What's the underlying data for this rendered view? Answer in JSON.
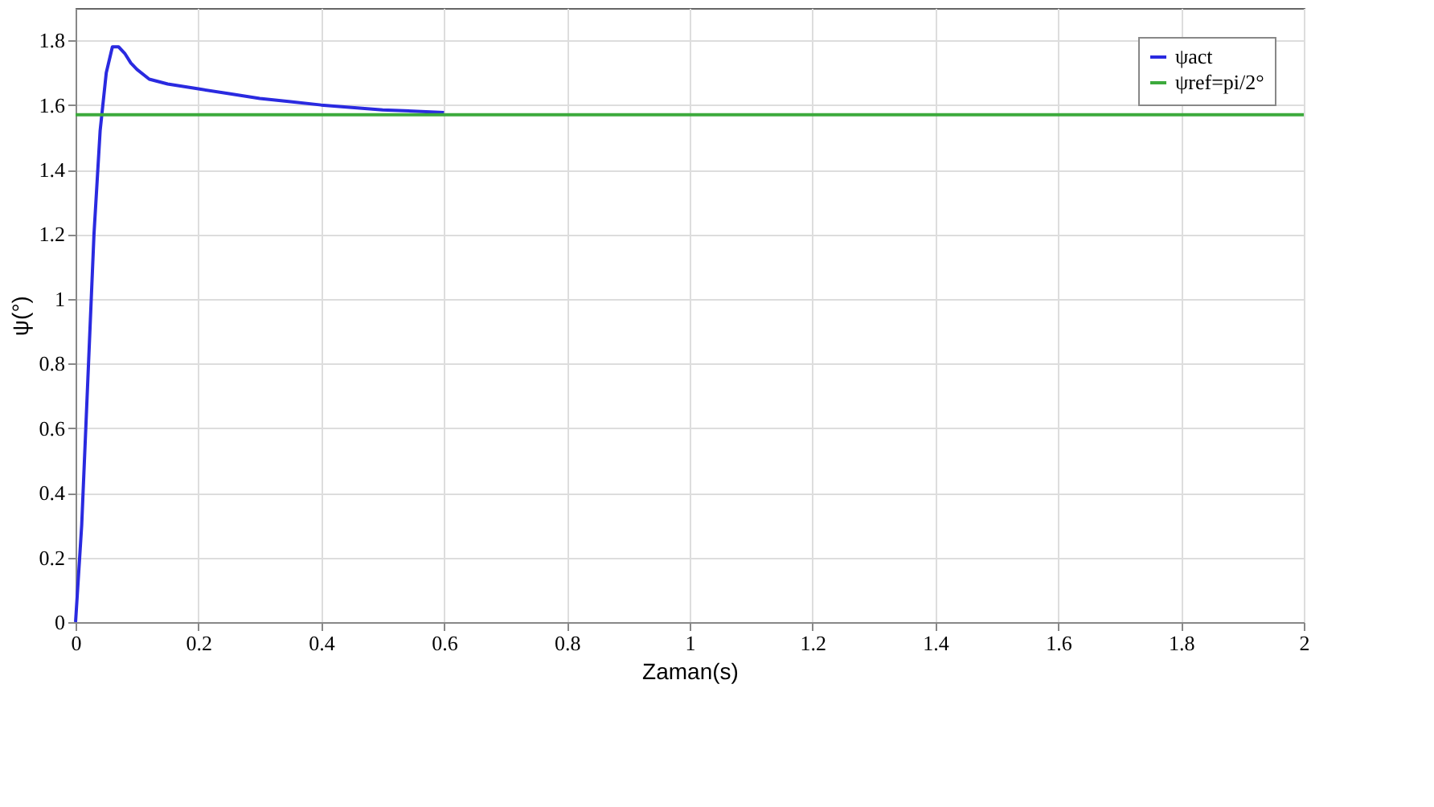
{
  "chart_data": {
    "type": "line",
    "xlabel": "Zaman(s)",
    "ylabel": "ψ(°)",
    "xlim": [
      0,
      2
    ],
    "xticks": [
      0,
      0.2,
      0.4,
      0.6,
      0.8,
      1,
      1.2,
      1.4,
      1.6,
      1.8,
      2
    ],
    "ylim": [
      0,
      1.9
    ],
    "yticks": [
      0,
      0.2,
      0.4,
      0.6,
      0.8,
      1,
      1.2,
      1.4,
      1.6,
      1.8
    ],
    "grid": true,
    "legend": "top right",
    "line_style": "solid",
    "series": [
      {
        "name": "ψact",
        "color": "#2a2ae0",
        "x": [
          0,
          0.01,
          0.02,
          0.03,
          0.04,
          0.05,
          0.06,
          0.07,
          0.08,
          0.09,
          0.1,
          0.12,
          0.15,
          0.2,
          0.25,
          0.3,
          0.35,
          0.4,
          0.5,
          0.6
        ],
        "values": [
          0,
          0.3,
          0.75,
          1.2,
          1.52,
          1.7,
          1.78,
          1.78,
          1.76,
          1.73,
          1.71,
          1.68,
          1.665,
          1.65,
          1.635,
          1.62,
          1.61,
          1.6,
          1.585,
          1.577
        ]
      },
      {
        "name": "ψref=pi/2°",
        "color": "#3caa3c",
        "x": [
          0,
          2
        ],
        "values": [
          1.57,
          1.57
        ]
      }
    ]
  }
}
